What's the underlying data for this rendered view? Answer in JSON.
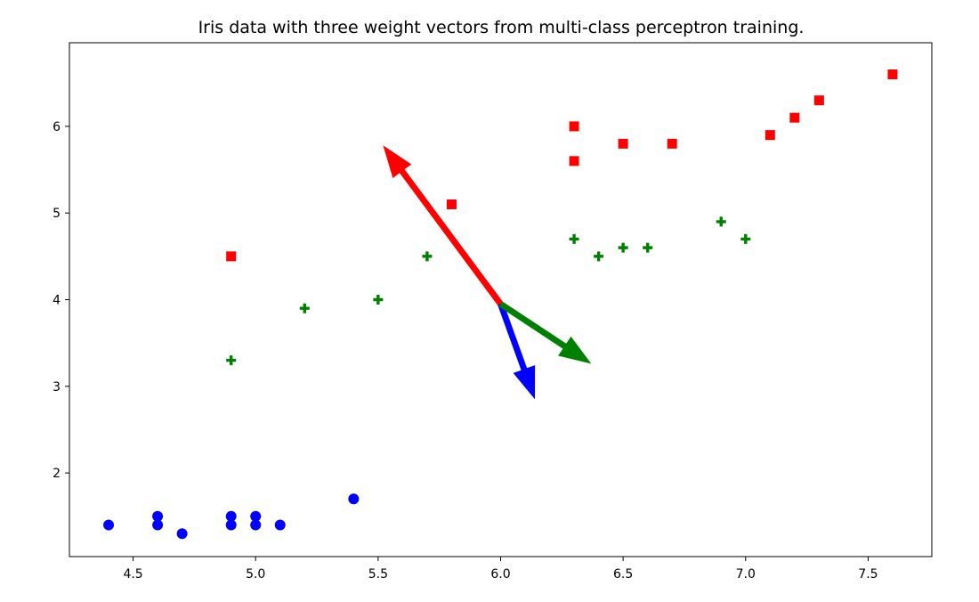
{
  "chart_data": {
    "type": "scatter",
    "title": "Iris data with three weight vectors from multi-class perceptron training.",
    "xlabel": "",
    "ylabel": "",
    "xlim": [
      4.24,
      7.76
    ],
    "ylim": [
      1.035,
      6.965
    ],
    "xticks": [
      4.5,
      5.0,
      5.5,
      6.0,
      6.5,
      7.0,
      7.5
    ],
    "xtick_labels": [
      "4.5",
      "5.0",
      "5.5",
      "6.0",
      "6.5",
      "7.0",
      "7.5"
    ],
    "yticks": [
      2,
      3,
      4,
      5,
      6
    ],
    "ytick_labels": [
      "2",
      "3",
      "4",
      "5",
      "6"
    ],
    "grid": false,
    "legend": "none",
    "series": [
      {
        "marker": "circle",
        "color": "#0000ff",
        "points": [
          [
            4.4,
            1.4
          ],
          [
            4.6,
            1.4
          ],
          [
            4.6,
            1.5
          ],
          [
            4.7,
            1.3
          ],
          [
            4.9,
            1.4
          ],
          [
            4.9,
            1.5
          ],
          [
            5.0,
            1.4
          ],
          [
            5.0,
            1.5
          ],
          [
            5.1,
            1.4
          ],
          [
            5.4,
            1.7
          ]
        ]
      },
      {
        "marker": "plus",
        "color": "#008000",
        "points": [
          [
            4.9,
            3.3
          ],
          [
            5.2,
            3.9
          ],
          [
            5.5,
            4.0
          ],
          [
            5.7,
            4.5
          ],
          [
            6.3,
            4.7
          ],
          [
            6.4,
            4.5
          ],
          [
            6.5,
            4.6
          ],
          [
            6.6,
            4.6
          ],
          [
            6.9,
            4.9
          ],
          [
            7.0,
            4.7
          ]
        ]
      },
      {
        "marker": "square",
        "color": "#ff0000",
        "points": [
          [
            4.9,
            4.5
          ],
          [
            5.8,
            5.1
          ],
          [
            6.3,
            5.6
          ],
          [
            6.3,
            6.0
          ],
          [
            6.5,
            5.8
          ],
          [
            6.7,
            5.8
          ],
          [
            7.1,
            5.9
          ],
          [
            7.2,
            6.1
          ],
          [
            7.3,
            6.3
          ],
          [
            7.6,
            6.6
          ]
        ]
      }
    ],
    "vectors": [
      {
        "color": "#ff0000",
        "from": [
          6.0,
          3.95
        ],
        "to": [
          5.52,
          5.78
        ]
      },
      {
        "color": "#0000ff",
        "from": [
          6.0,
          3.95
        ],
        "to": [
          6.14,
          2.85
        ]
      },
      {
        "color": "#008000",
        "from": [
          6.0,
          3.95
        ],
        "to": [
          6.37,
          3.26
        ]
      }
    ]
  }
}
